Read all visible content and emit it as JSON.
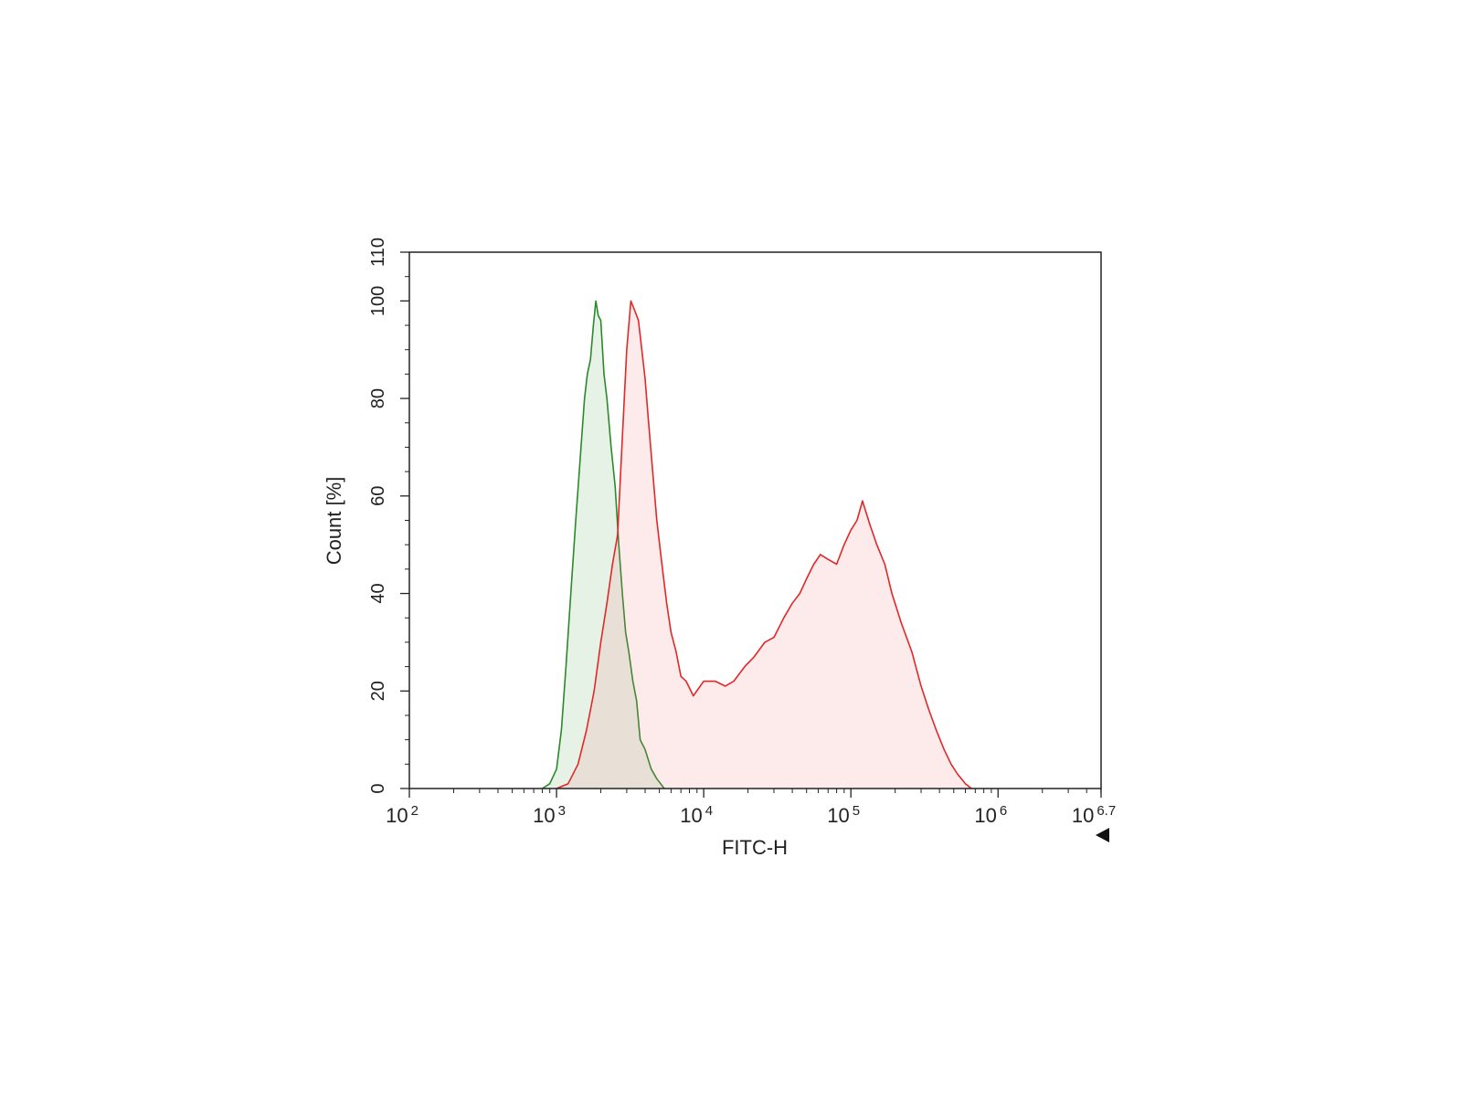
{
  "chart_data": {
    "type": "area",
    "xlabel": "FITC-H",
    "ylabel": "Count [%]",
    "x_scale": "log",
    "xlim": [
      100,
      5011872
    ],
    "ylim": [
      0,
      110
    ],
    "x_ticks": [
      {
        "base": "10",
        "exp": "2",
        "value": 100
      },
      {
        "base": "10",
        "exp": "3",
        "value": 1000
      },
      {
        "base": "10",
        "exp": "4",
        "value": 10000
      },
      {
        "base": "10",
        "exp": "5",
        "value": 100000
      },
      {
        "base": "10",
        "exp": "6",
        "value": 1000000
      },
      {
        "base": "10",
        "exp": "6.7",
        "value": 5011872
      }
    ],
    "y_ticks": [
      "0",
      "20",
      "40",
      "60",
      "80",
      "100",
      "110"
    ],
    "grid": false,
    "series": [
      {
        "color": "#2a8a2a",
        "fill": "rgba(60,150,60,0.12)",
        "points": [
          [
            800,
            0
          ],
          [
            900,
            1
          ],
          [
            1000,
            4
          ],
          [
            1080,
            12
          ],
          [
            1160,
            25
          ],
          [
            1250,
            40
          ],
          [
            1350,
            55
          ],
          [
            1450,
            68
          ],
          [
            1550,
            80
          ],
          [
            1620,
            85
          ],
          [
            1700,
            88
          ],
          [
            1780,
            95
          ],
          [
            1850,
            100
          ],
          [
            1920,
            97
          ],
          [
            2000,
            96
          ],
          [
            2100,
            85
          ],
          [
            2200,
            80
          ],
          [
            2350,
            70
          ],
          [
            2500,
            62
          ],
          [
            2650,
            50
          ],
          [
            2800,
            40
          ],
          [
            2950,
            32
          ],
          [
            3100,
            28
          ],
          [
            3300,
            22
          ],
          [
            3500,
            18
          ],
          [
            3700,
            10
          ],
          [
            4000,
            8
          ],
          [
            4400,
            4
          ],
          [
            4800,
            2
          ],
          [
            5400,
            0
          ]
        ]
      },
      {
        "color": "#e02828",
        "fill": "rgba(240,110,120,0.14)",
        "points": [
          [
            1000,
            0
          ],
          [
            1200,
            1
          ],
          [
            1400,
            5
          ],
          [
            1600,
            12
          ],
          [
            1800,
            20
          ],
          [
            2000,
            30
          ],
          [
            2200,
            38
          ],
          [
            2400,
            46
          ],
          [
            2600,
            52
          ],
          [
            2800,
            72
          ],
          [
            3000,
            90
          ],
          [
            3200,
            100
          ],
          [
            3400,
            98
          ],
          [
            3600,
            96
          ],
          [
            3800,
            90
          ],
          [
            4000,
            84
          ],
          [
            4200,
            76
          ],
          [
            4500,
            65
          ],
          [
            4800,
            55
          ],
          [
            5200,
            46
          ],
          [
            5600,
            38
          ],
          [
            6000,
            32
          ],
          [
            6500,
            28
          ],
          [
            7000,
            23
          ],
          [
            7600,
            22
          ],
          [
            8500,
            19
          ],
          [
            10000,
            22
          ],
          [
            12000,
            22
          ],
          [
            14000,
            21
          ],
          [
            16000,
            22
          ],
          [
            19000,
            25
          ],
          [
            22000,
            27
          ],
          [
            26000,
            30
          ],
          [
            30000,
            31
          ],
          [
            35000,
            35
          ],
          [
            40000,
            38
          ],
          [
            45000,
            40
          ],
          [
            50000,
            43
          ],
          [
            56000,
            46
          ],
          [
            62000,
            48
          ],
          [
            70000,
            47
          ],
          [
            80000,
            46
          ],
          [
            90000,
            50
          ],
          [
            100000,
            53
          ],
          [
            110000,
            55
          ],
          [
            120000,
            59
          ],
          [
            135000,
            54
          ],
          [
            150000,
            50
          ],
          [
            170000,
            46
          ],
          [
            190000,
            40
          ],
          [
            220000,
            34
          ],
          [
            260000,
            28
          ],
          [
            300000,
            21
          ],
          [
            340000,
            16
          ],
          [
            380000,
            12
          ],
          [
            430000,
            8
          ],
          [
            480000,
            5
          ],
          [
            530000,
            3
          ],
          [
            600000,
            1
          ],
          [
            660000,
            0
          ]
        ]
      }
    ]
  }
}
